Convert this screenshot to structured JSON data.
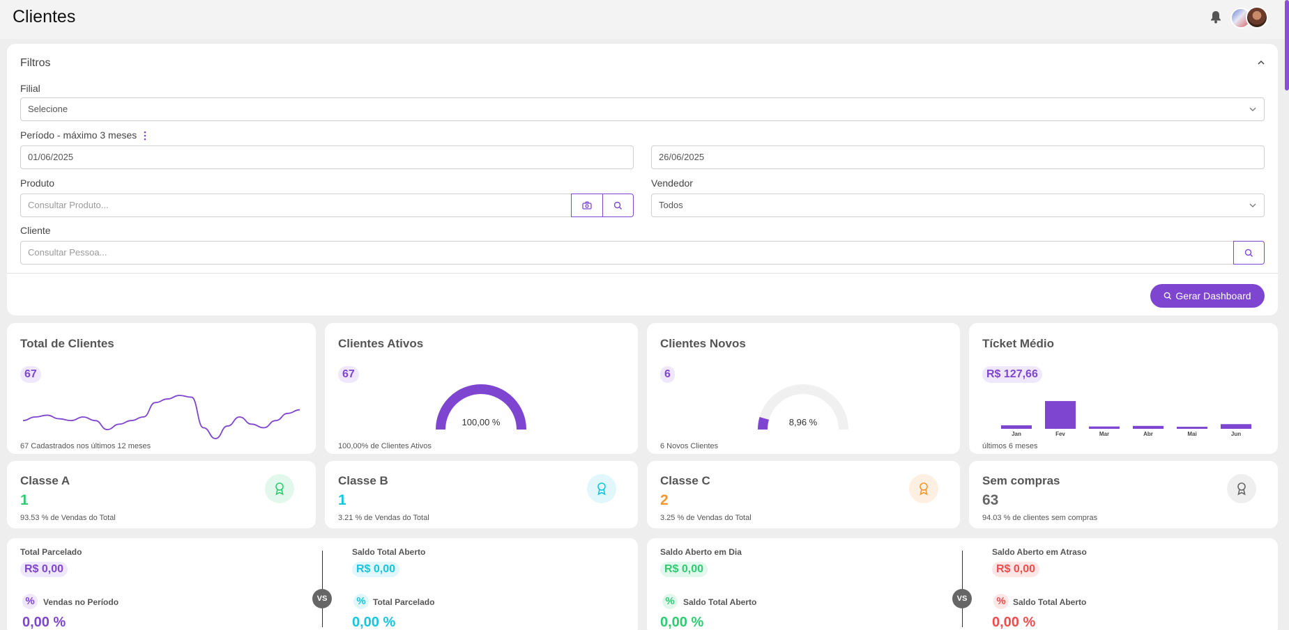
{
  "header": {
    "title": "Clientes"
  },
  "filters": {
    "title": "Filtros",
    "filial": {
      "label": "Filial",
      "value": "Selecione"
    },
    "periodo": {
      "label": "Período - máximo 3 meses",
      "start": "01/06/2025",
      "end": "26/06/2025"
    },
    "produto": {
      "label": "Produto",
      "placeholder": "Consultar Produto..."
    },
    "vendedor": {
      "label": "Vendedor",
      "value": "Todos"
    },
    "cliente": {
      "label": "Cliente",
      "placeholder": "Consultar Pessoa..."
    },
    "generate_button": "Gerar Dashboard"
  },
  "kpis": {
    "total": {
      "title": "Total de Clientes",
      "value": "67",
      "foot": "67 Cadastrados nos últimos 12 meses"
    },
    "ativos": {
      "title": "Clientes Ativos",
      "value": "67",
      "gauge_label": "100,00 %",
      "gauge_fraction": 1.0,
      "foot": "100,00% de Clientes Ativos"
    },
    "novos": {
      "title": "Clientes Novos",
      "value": "6",
      "gauge_label": "8,96 %",
      "gauge_fraction": 0.0896,
      "foot": "6 Novos Clientes"
    },
    "ticket": {
      "title": "Tícket Médio",
      "value": "R$ 127,66",
      "foot": "últimos 6 meses"
    }
  },
  "chart_data": [
    {
      "type": "line",
      "x": [
        1,
        2,
        3,
        4,
        5,
        6,
        7,
        8,
        9,
        10,
        11,
        12,
        13,
        14,
        15,
        16,
        17,
        18,
        19,
        20,
        21,
        22,
        23,
        24
      ],
      "values": [
        4,
        5,
        5.5,
        4.5,
        4,
        5,
        4,
        1.5,
        3,
        4,
        5,
        9,
        10,
        11,
        10.5,
        2,
        -1,
        2.5,
        5,
        3,
        2,
        4,
        6,
        7
      ],
      "title": "",
      "xlabel": "",
      "ylabel": ""
    },
    {
      "type": "bar",
      "categories": [
        "Jan",
        "Fev",
        "Mar",
        "Abr",
        "Mai",
        "Jun"
      ],
      "values": [
        12,
        95,
        8,
        10,
        7,
        16
      ],
      "title": "",
      "xlabel": "",
      "ylabel": ""
    }
  ],
  "classes": [
    {
      "title": "Classe A",
      "value": "1",
      "foot": "93.53 % de Vendas do Total",
      "color": "#2ecc71",
      "bg": "#e3f8ec",
      "icon": "award-icon"
    },
    {
      "title": "Classe B",
      "value": "1",
      "foot": "3.21 % de Vendas do Total",
      "color": "#18c5dc",
      "bg": "#e1f7fb",
      "icon": "award-icon"
    },
    {
      "title": "Classe C",
      "value": "2",
      "foot": "3.25 % de Vendas do Total",
      "color": "#f5962f",
      "bg": "#fdf0e2",
      "icon": "award-icon"
    },
    {
      "title": "Sem compras",
      "value": "63",
      "foot": "94.03 % de clientes sem compras",
      "color": "#666666",
      "bg": "#efefef",
      "icon": "award-icon"
    }
  ],
  "bottom": {
    "left": {
      "a_label": "Total Parcelado",
      "a_value": "R$ 0,00",
      "a_sub": "Vendas no Período",
      "a_pct": "0,00 %",
      "vs": "VS",
      "b_label": "Saldo Total Aberto",
      "b_value": "R$ 0,00",
      "b_sub": "Total Parcelado",
      "b_pct": "0,00 %",
      "pct_symbol": "%"
    },
    "right": {
      "a_label": "Saldo Aberto em Dia",
      "a_value": "R$ 0,00",
      "a_sub": "Saldo Total Aberto",
      "a_pct": "0,00 %",
      "vs": "VS",
      "b_label": "Saldo Aberto em Atraso",
      "b_value": "R$ 0,00",
      "b_sub": "Saldo Total Aberto",
      "b_pct": "0,00 %",
      "pct_symbol": "%"
    }
  },
  "colors": {
    "accent": "#7e45d0",
    "green": "#2ecc71",
    "cyan": "#18c5dc",
    "red": "#ef4c4c"
  }
}
